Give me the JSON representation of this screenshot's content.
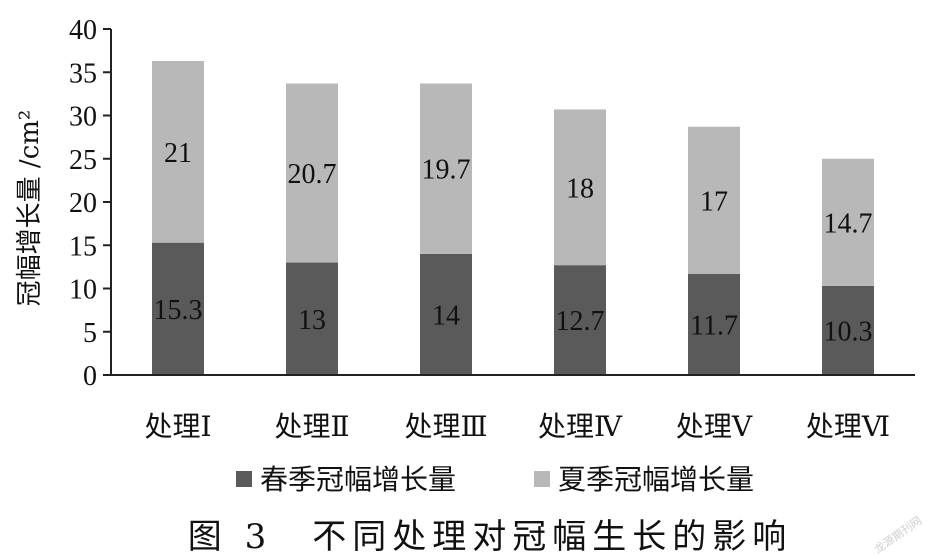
{
  "chart_data": {
    "type": "bar",
    "stacked": true,
    "categories": [
      "处理Ⅰ",
      "处理Ⅱ",
      "处理Ⅲ",
      "处理Ⅳ",
      "处理Ⅴ",
      "处理Ⅵ"
    ],
    "series": [
      {
        "name": "春季冠幅增长量",
        "values": [
          15.3,
          13,
          14,
          12.7,
          11.7,
          10.3
        ],
        "color": "#5a5a5a"
      },
      {
        "name": "夏季冠幅增长量",
        "values": [
          21,
          20.7,
          19.7,
          18,
          17,
          14.7
        ],
        "color": "#b8b8b8"
      }
    ],
    "ylabel": "冠幅增长量 /cm²",
    "ylim": [
      0,
      40
    ],
    "yticks": [
      0,
      5,
      10,
      15,
      20,
      25,
      30,
      35,
      40
    ],
    "grid": false,
    "legend_position": "bottom"
  },
  "caption": "图 3　不同处理对冠幅生长的影响",
  "watermark": "龙源期刊网"
}
